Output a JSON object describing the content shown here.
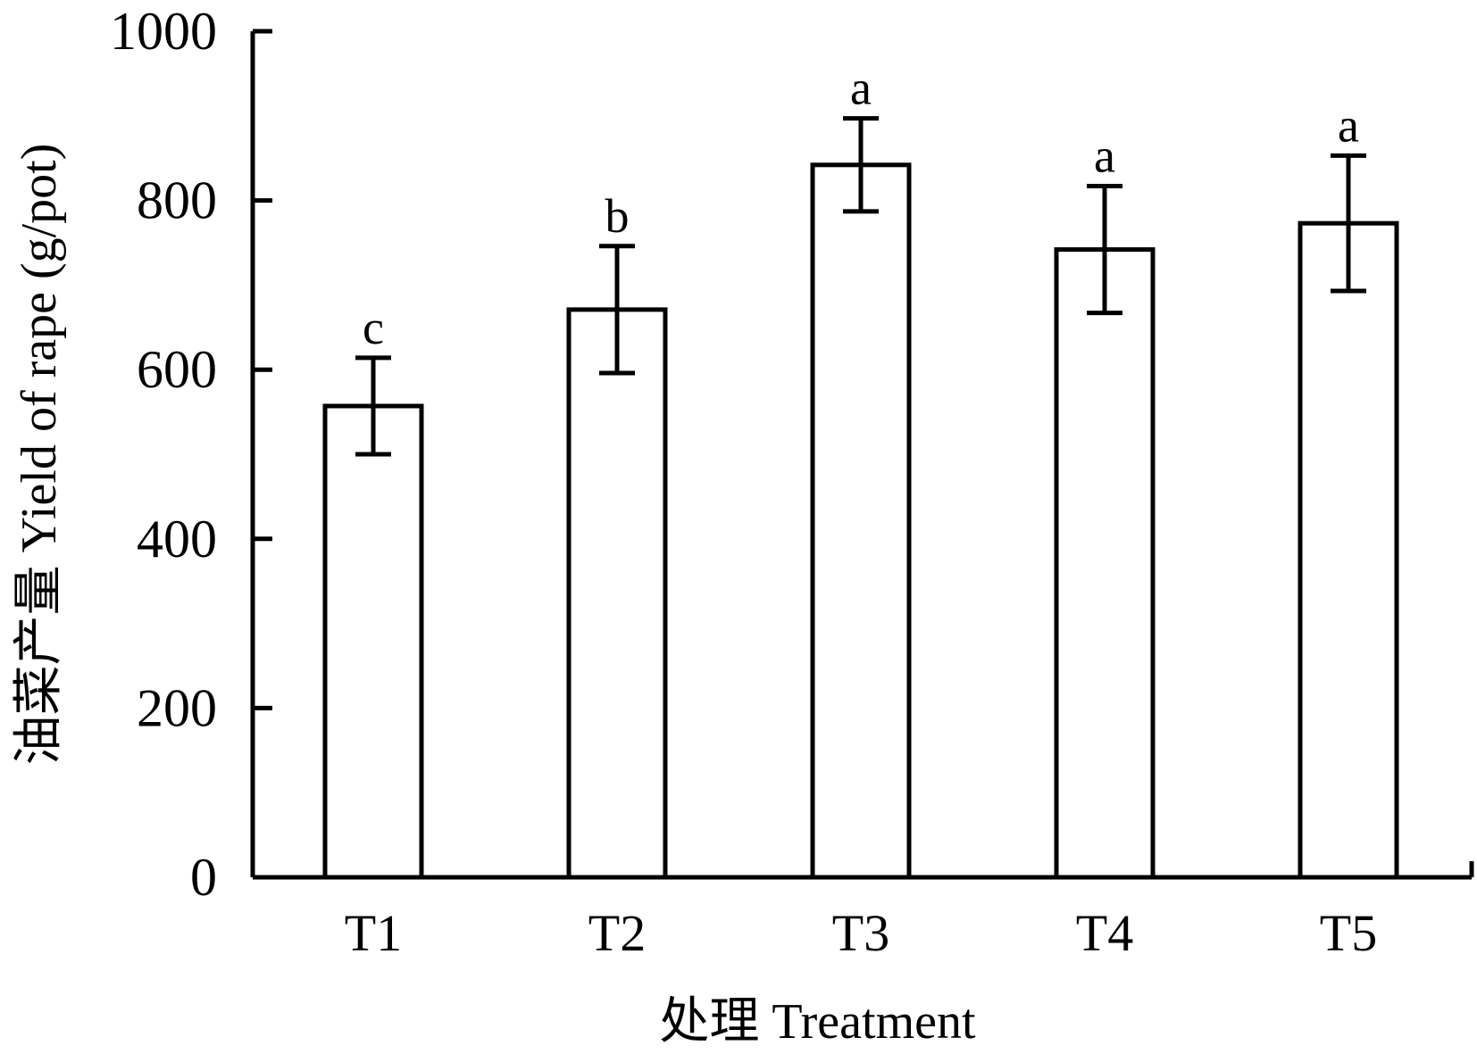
{
  "chart_data": {
    "type": "bar",
    "title": "",
    "xlabel": "处理 Treatment",
    "ylabel": "油菜产量 Yield of rape (g/pot)",
    "ylim": [
      0,
      1000
    ],
    "yticks": [
      0,
      200,
      400,
      600,
      800,
      1000
    ],
    "categories": [
      "T1",
      "T2",
      "T3",
      "T4",
      "T5"
    ],
    "values": [
      557,
      671,
      842,
      742,
      773
    ],
    "errors": [
      57,
      75,
      55,
      75,
      80
    ],
    "significance_letters": [
      "c",
      "b",
      "a",
      "a",
      "a"
    ],
    "grid": false,
    "legend": "none",
    "colors": {
      "bar_fill": "#ffffff",
      "stroke": "#000000"
    }
  }
}
